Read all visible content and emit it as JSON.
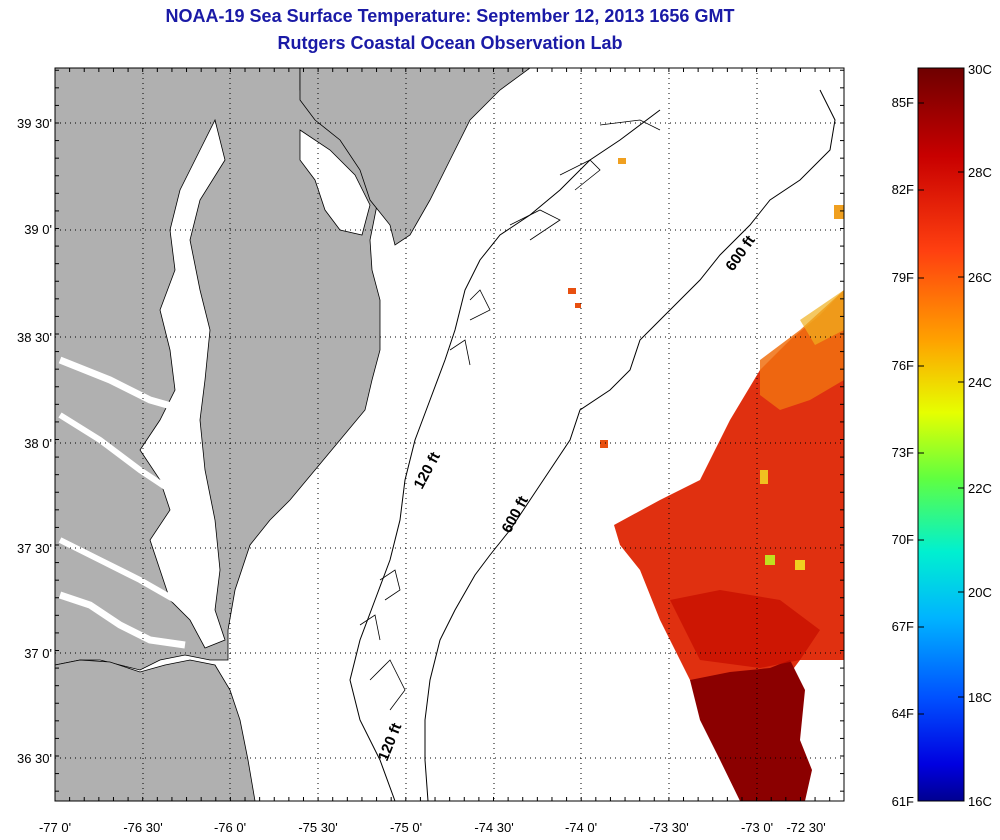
{
  "title": {
    "line1": "NOAA-19 Sea Surface Temperature:  September 12, 2013 1656 GMT",
    "line2": "Rutgers Coastal Ocean Observation Lab"
  },
  "colors": {
    "title": "#1a1aa6",
    "land": "#b0b0b0",
    "water": "#ffffff",
    "sst_hot": "#8b0000",
    "sst_warm": "#e03010"
  },
  "map": {
    "lat_labels": [
      "39 30'",
      "39 0'",
      "38 30'",
      "38 0'",
      "37 30'",
      "37 0'",
      "36 30'"
    ],
    "lon_labels": [
      "-77 0'",
      "-76 30'",
      "-76 0'",
      "-75 30'",
      "-75 0'",
      "-74 30'",
      "-74 0'",
      "-73 30'",
      "-73 0'",
      "-72 30'"
    ],
    "contours": {
      "c120_upper": "120 ft",
      "c120_lower": "120 ft",
      "c600_upper": "600 ft",
      "c600_lower": "600 ft"
    }
  },
  "colorbar": {
    "f_labels": [
      "85F",
      "82F",
      "79F",
      "76F",
      "73F",
      "70F",
      "67F",
      "64F",
      "61F"
    ],
    "c_labels": [
      "30C",
      "28C",
      "26C",
      "24C",
      "22C",
      "20C",
      "18C",
      "16C"
    ]
  }
}
